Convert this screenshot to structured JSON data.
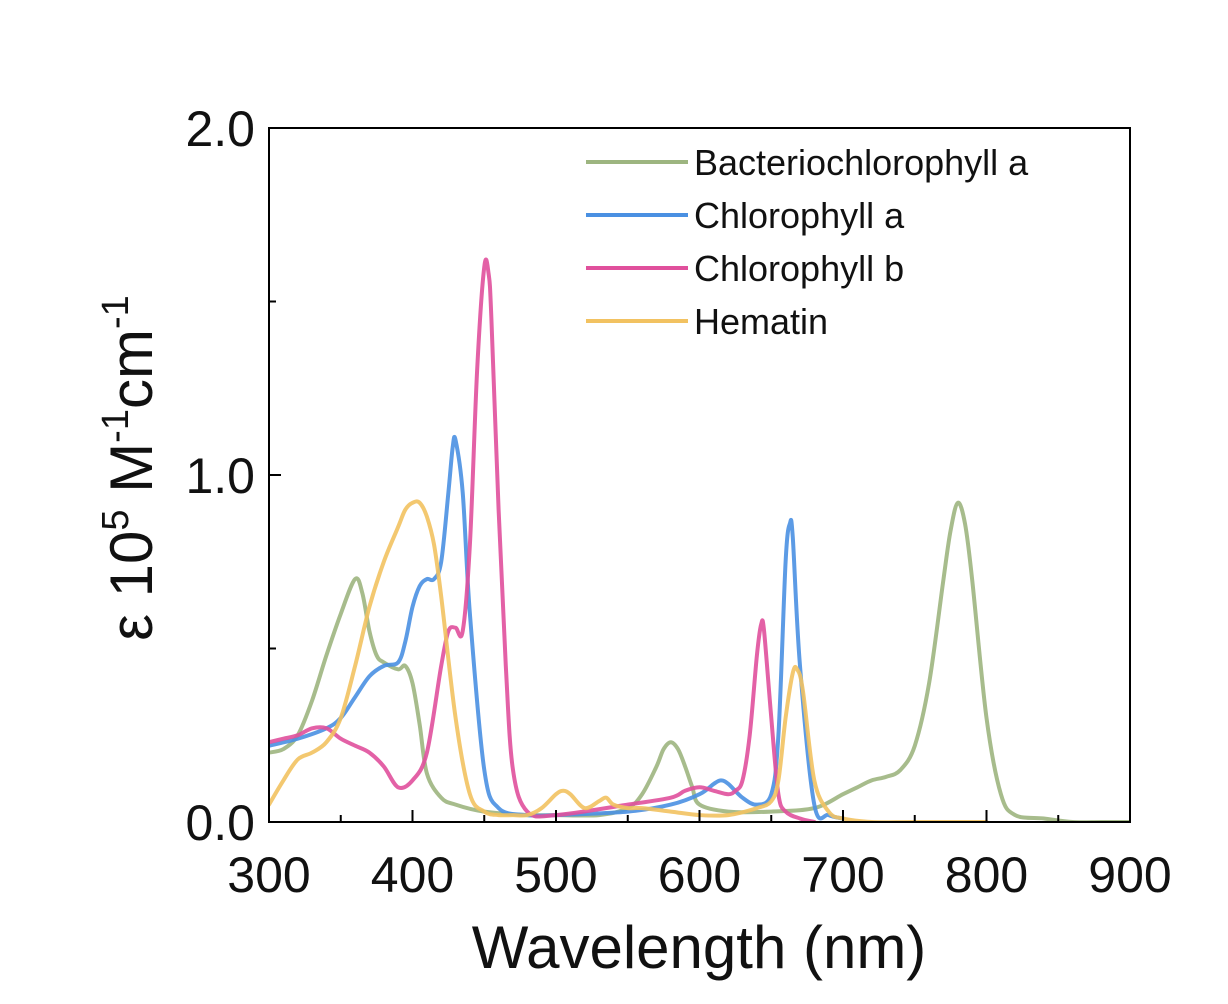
{
  "chart_data": {
    "type": "line",
    "xlabel": "Wavelength (nm)",
    "ylabel": {
      "base": "ε 10",
      "exp": "5",
      "unit1": " M",
      "unit1_exp": "-1",
      "unit2": "cm",
      "unit2_exp": "-1"
    },
    "xlim": [
      300,
      900
    ],
    "ylim": [
      0,
      2.0
    ],
    "x_ticks": [
      300,
      400,
      500,
      600,
      700,
      800,
      900
    ],
    "x_tick_labels": [
      "300",
      "400",
      "500",
      "600",
      "700",
      "800",
      "900"
    ],
    "x_minor_ticks": [
      350,
      450,
      550,
      650,
      750,
      850
    ],
    "y_ticks": [
      0.0,
      1.0,
      2.0
    ],
    "y_tick_labels": [
      "0.0",
      "1.0",
      "2.0"
    ],
    "y_minor_ticks": [
      0.5,
      1.5
    ],
    "grid": false,
    "legend_position": "top-right",
    "series": [
      {
        "name": "Bacteriochlorophyll a",
        "color": "#9db580",
        "x": [
          300,
          310,
          320,
          330,
          340,
          350,
          360,
          365,
          370,
          375,
          380,
          390,
          395,
          400,
          405,
          410,
          420,
          430,
          450,
          480,
          500,
          530,
          550,
          560,
          570,
          575,
          580,
          585,
          590,
          595,
          600,
          620,
          650,
          680,
          700,
          710,
          720,
          730,
          740,
          750,
          760,
          770,
          775,
          780,
          785,
          790,
          800,
          810,
          820,
          840,
          860,
          880,
          900
        ],
        "y": [
          0.2,
          0.21,
          0.25,
          0.35,
          0.48,
          0.6,
          0.7,
          0.66,
          0.55,
          0.48,
          0.46,
          0.44,
          0.45,
          0.4,
          0.28,
          0.14,
          0.07,
          0.05,
          0.03,
          0.02,
          0.02,
          0.02,
          0.04,
          0.08,
          0.16,
          0.21,
          0.23,
          0.21,
          0.16,
          0.1,
          0.05,
          0.03,
          0.03,
          0.04,
          0.08,
          0.1,
          0.12,
          0.13,
          0.15,
          0.22,
          0.4,
          0.7,
          0.84,
          0.92,
          0.86,
          0.7,
          0.3,
          0.08,
          0.02,
          0.01,
          0.0,
          0.0,
          0.0
        ]
      },
      {
        "name": "Chlorophyll a",
        "color": "#4a90e2",
        "x": [
          300,
          320,
          340,
          350,
          360,
          370,
          380,
          390,
          395,
          400,
          405,
          410,
          415,
          420,
          425,
          428,
          430,
          435,
          440,
          450,
          460,
          480,
          500,
          550,
          580,
          600,
          610,
          615,
          620,
          630,
          640,
          650,
          655,
          660,
          663,
          665,
          670,
          680,
          690,
          700
        ],
        "y": [
          0.22,
          0.24,
          0.27,
          0.3,
          0.36,
          0.42,
          0.45,
          0.46,
          0.52,
          0.62,
          0.68,
          0.7,
          0.7,
          0.75,
          0.95,
          1.08,
          1.1,
          0.95,
          0.6,
          0.15,
          0.04,
          0.02,
          0.02,
          0.03,
          0.05,
          0.08,
          0.11,
          0.12,
          0.11,
          0.07,
          0.05,
          0.08,
          0.25,
          0.75,
          0.86,
          0.82,
          0.45,
          0.05,
          0.02,
          0.01
        ]
      },
      {
        "name": "Chlorophyll b",
        "color": "#e0509c",
        "x": [
          300,
          310,
          320,
          330,
          340,
          350,
          360,
          370,
          380,
          390,
          400,
          410,
          420,
          425,
          430,
          435,
          440,
          445,
          450,
          453,
          455,
          460,
          465,
          470,
          480,
          500,
          550,
          580,
          590,
          600,
          610,
          620,
          625,
          630,
          635,
          640,
          643,
          645,
          650,
          655,
          660,
          670,
          680
        ],
        "y": [
          0.23,
          0.24,
          0.25,
          0.27,
          0.27,
          0.24,
          0.22,
          0.2,
          0.16,
          0.1,
          0.12,
          0.2,
          0.45,
          0.55,
          0.56,
          0.55,
          0.8,
          1.3,
          1.6,
          1.58,
          1.45,
          0.9,
          0.45,
          0.15,
          0.03,
          0.02,
          0.05,
          0.07,
          0.09,
          0.1,
          0.09,
          0.08,
          0.09,
          0.12,
          0.25,
          0.48,
          0.57,
          0.55,
          0.3,
          0.08,
          0.03,
          0.01,
          0.0
        ]
      },
      {
        "name": "Hematin",
        "color": "#f2c261",
        "x": [
          300,
          310,
          320,
          330,
          340,
          350,
          360,
          370,
          380,
          390,
          395,
          400,
          405,
          410,
          415,
          420,
          430,
          440,
          450,
          460,
          470,
          480,
          490,
          500,
          505,
          510,
          520,
          530,
          535,
          540,
          550,
          560,
          580,
          600,
          620,
          640,
          650,
          655,
          660,
          665,
          668,
          672,
          680,
          690,
          700,
          720,
          750,
          800
        ],
        "y": [
          0.05,
          0.12,
          0.18,
          0.2,
          0.23,
          0.3,
          0.45,
          0.62,
          0.75,
          0.85,
          0.9,
          0.92,
          0.92,
          0.88,
          0.8,
          0.65,
          0.3,
          0.08,
          0.03,
          0.02,
          0.02,
          0.02,
          0.04,
          0.08,
          0.09,
          0.08,
          0.04,
          0.06,
          0.07,
          0.05,
          0.04,
          0.04,
          0.03,
          0.02,
          0.02,
          0.04,
          0.06,
          0.12,
          0.3,
          0.43,
          0.44,
          0.38,
          0.12,
          0.03,
          0.01,
          0.0,
          0.0,
          0.0
        ]
      }
    ]
  }
}
